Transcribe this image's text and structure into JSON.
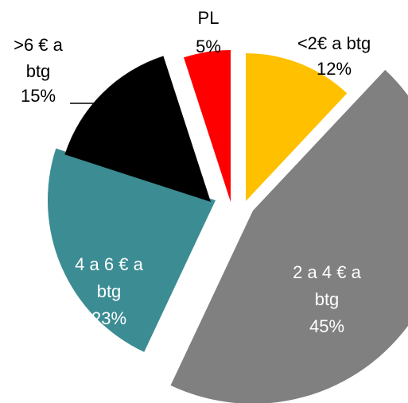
{
  "chart_data": {
    "type": "pie",
    "title": "",
    "slices": [
      {
        "label": [
          "<2€ a btg"
        ],
        "value": 12,
        "display": "12%",
        "color": "#FFC000"
      },
      {
        "label": [
          "2 a 4 € a",
          "btg"
        ],
        "value": 45,
        "display": "45%",
        "color": "#808080"
      },
      {
        "label": [
          "4 a 6 € a",
          "btg"
        ],
        "value": 23,
        "display": "23%",
        "color": "#3C8C93"
      },
      {
        "label": [
          ">6 € a",
          "btg"
        ],
        "value": 15,
        "display": "15%",
        "color": "#000000"
      },
      {
        "label": [
          "PL"
        ],
        "value": 5,
        "display": "5%",
        "color": "#FF0000"
      }
    ]
  }
}
